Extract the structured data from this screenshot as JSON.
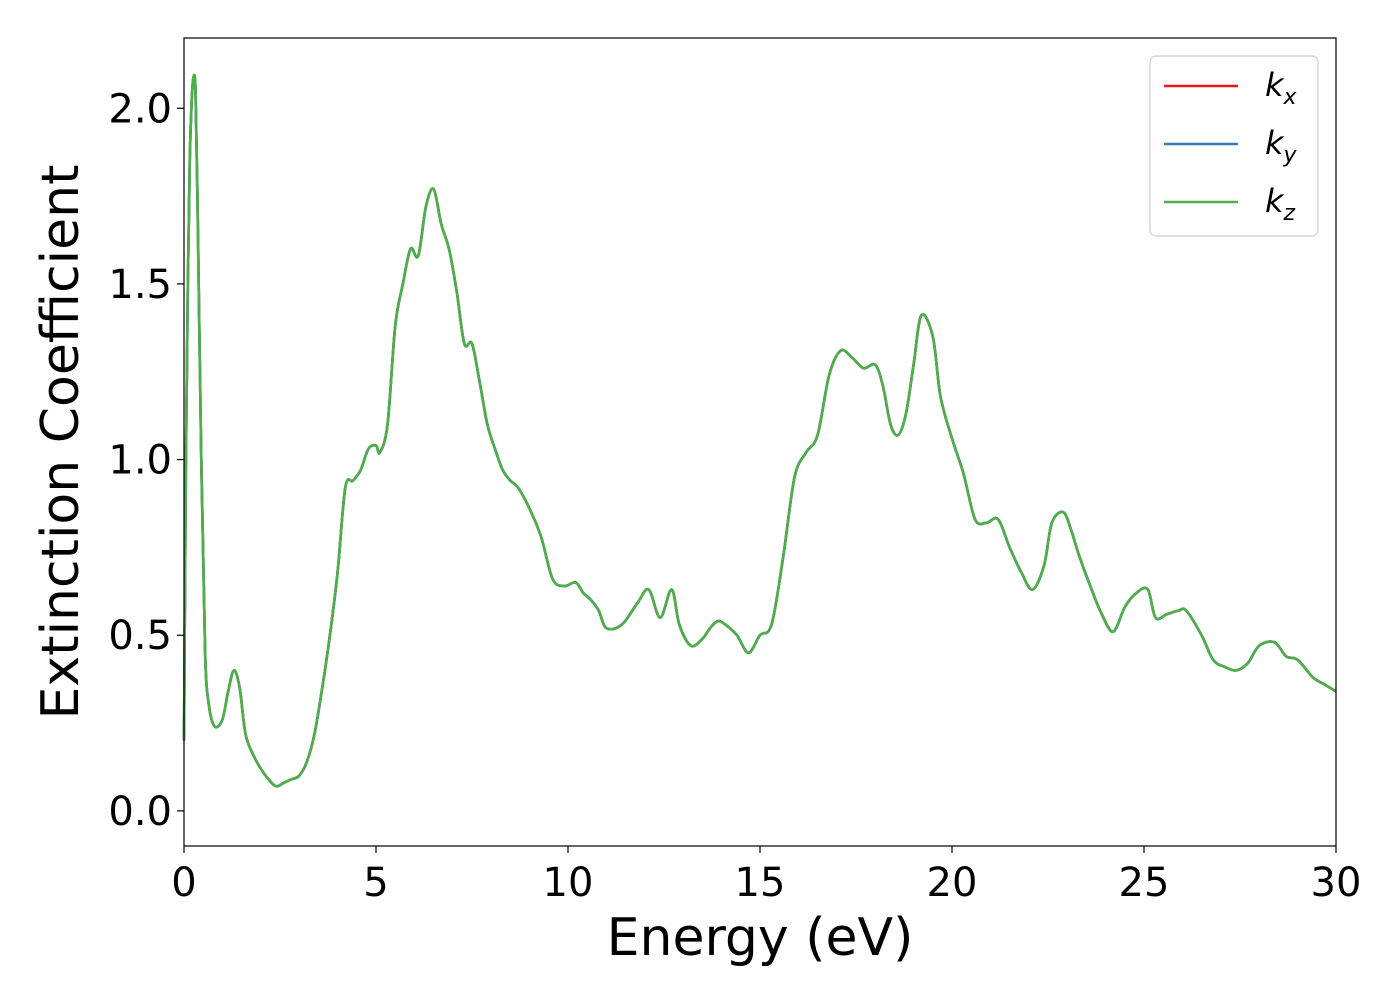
{
  "chart_data": {
    "type": "line",
    "xlabel": "Energy (eV)",
    "ylabel": "Extinction Coefficient",
    "xlim": [
      0,
      30
    ],
    "ylim": [
      -0.1,
      2.2
    ],
    "xticks": [
      0,
      5,
      10,
      15,
      20,
      25,
      30
    ],
    "yticks": [
      0.0,
      0.5,
      1.0,
      1.5,
      2.0
    ],
    "xtick_labels": [
      "0",
      "5",
      "10",
      "15",
      "20",
      "25",
      "30"
    ],
    "ytick_labels": [
      "0.0",
      "0.5",
      "1.0",
      "1.5",
      "2.0"
    ],
    "grid": false,
    "legend_position": "top-right",
    "series": [
      {
        "name": "k",
        "subscript": "x",
        "color": "#e41a1c"
      },
      {
        "name": "k",
        "subscript": "y",
        "color": "#377eb8"
      },
      {
        "name": "k",
        "subscript": "z",
        "color": "#4daf4a"
      }
    ],
    "x": [
      0.0,
      0.05,
      0.1,
      0.15,
      0.2,
      0.25,
      0.3,
      0.35,
      0.45,
      0.55,
      0.65,
      0.8,
      1.0,
      1.15,
      1.3,
      1.45,
      1.6,
      1.8,
      2.0,
      2.2,
      2.4,
      2.6,
      2.8,
      3.0,
      3.2,
      3.4,
      3.6,
      3.8,
      4.0,
      4.2,
      4.4,
      4.6,
      4.8,
      5.0,
      5.1,
      5.3,
      5.5,
      5.7,
      5.9,
      6.1,
      6.3,
      6.5,
      6.7,
      6.9,
      7.1,
      7.3,
      7.5,
      7.7,
      7.9,
      8.1,
      8.3,
      8.5,
      8.7,
      9.0,
      9.3,
      9.6,
      9.9,
      10.2,
      10.4,
      10.6,
      10.8,
      11.0,
      11.4,
      11.8,
      12.1,
      12.4,
      12.7,
      12.9,
      13.2,
      13.5,
      13.7,
      13.9,
      14.1,
      14.4,
      14.7,
      15.0,
      15.3,
      15.6,
      15.9,
      16.2,
      16.5,
      16.8,
      17.1,
      17.4,
      17.7,
      18.0,
      18.2,
      18.4,
      18.6,
      18.8,
      19.0,
      19.2,
      19.5,
      19.7,
      20.0,
      20.3,
      20.6,
      20.9,
      21.2,
      21.5,
      21.8,
      22.1,
      22.4,
      22.6,
      22.9,
      23.1,
      23.3,
      23.6,
      23.9,
      24.2,
      24.5,
      24.8,
      25.1,
      25.3,
      25.6,
      25.9,
      26.1,
      26.5,
      26.8,
      27.1,
      27.4,
      27.7,
      28.0,
      28.4,
      28.7,
      29.0,
      29.4,
      29.7,
      30.0
    ],
    "y": [
      0.2,
      1.0,
      1.5,
      1.85,
      2.02,
      2.09,
      2.05,
      1.75,
      1.0,
      0.45,
      0.3,
      0.24,
      0.26,
      0.34,
      0.4,
      0.35,
      0.22,
      0.16,
      0.12,
      0.09,
      0.07,
      0.08,
      0.09,
      0.1,
      0.14,
      0.22,
      0.35,
      0.5,
      0.68,
      0.92,
      0.94,
      0.97,
      1.03,
      1.04,
      1.02,
      1.1,
      1.38,
      1.5,
      1.6,
      1.58,
      1.72,
      1.77,
      1.67,
      1.6,
      1.48,
      1.33,
      1.33,
      1.22,
      1.1,
      1.03,
      0.97,
      0.94,
      0.92,
      0.86,
      0.78,
      0.66,
      0.64,
      0.65,
      0.62,
      0.6,
      0.57,
      0.52,
      0.53,
      0.59,
      0.63,
      0.55,
      0.63,
      0.53,
      0.47,
      0.49,
      0.52,
      0.54,
      0.53,
      0.5,
      0.45,
      0.5,
      0.53,
      0.72,
      0.95,
      1.02,
      1.07,
      1.24,
      1.31,
      1.29,
      1.26,
      1.27,
      1.21,
      1.1,
      1.07,
      1.13,
      1.27,
      1.41,
      1.35,
      1.18,
      1.06,
      0.96,
      0.83,
      0.82,
      0.83,
      0.75,
      0.68,
      0.63,
      0.7,
      0.82,
      0.85,
      0.8,
      0.73,
      0.64,
      0.56,
      0.51,
      0.58,
      0.62,
      0.63,
      0.55,
      0.56,
      0.57,
      0.57,
      0.5,
      0.43,
      0.41,
      0.4,
      0.42,
      0.47,
      0.48,
      0.44,
      0.43,
      0.38,
      0.36,
      0.34
    ]
  }
}
